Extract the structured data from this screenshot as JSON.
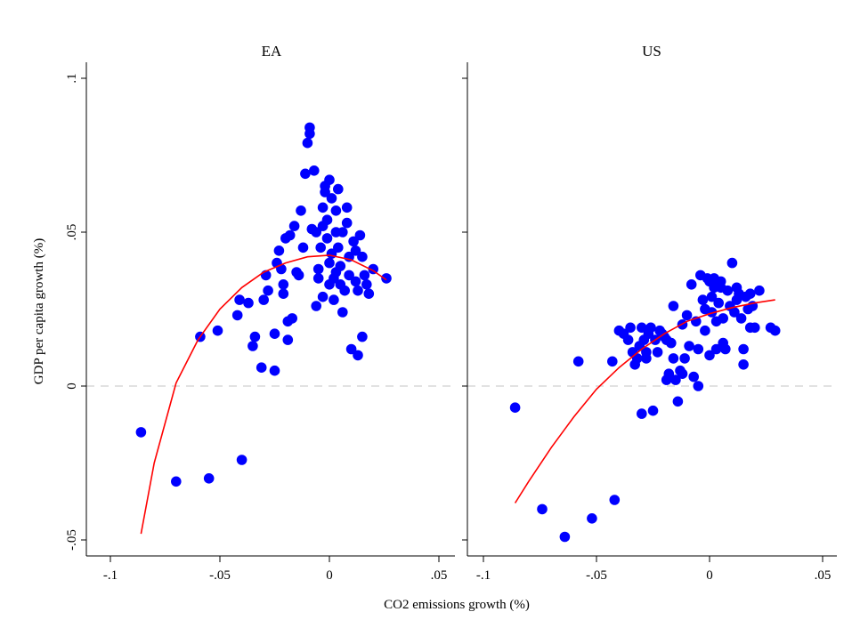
{
  "chart_data": {
    "type": "scatter",
    "xlabel": "CO2 emissions growth (%)",
    "ylabel": "GDP per capita growth (%)",
    "ylim": [
      -0.05,
      0.1
    ],
    "yticks": [
      -0.05,
      0,
      0.05,
      0.1
    ],
    "ytick_labels": [
      "-.05",
      "0",
      ".05",
      ".1"
    ],
    "grid": false,
    "legend": "none",
    "reference_line": {
      "y": 0,
      "style": "dashed",
      "color": "#d9d9d9"
    },
    "colors": {
      "points": "#0000ff",
      "fit": "#ff0000",
      "frame": "#000000",
      "background": "#ffffff"
    },
    "panels": [
      {
        "title": "EA",
        "xlim": [
          -0.1,
          0.05
        ],
        "xticks": [
          -0.1,
          -0.05,
          0,
          0.05
        ],
        "xtick_labels": [
          "-.1",
          "-.05",
          "0",
          ".05"
        ],
        "series": [
          {
            "type": "scatter",
            "points": [
              [
                -0.086,
                -0.015
              ],
              [
                -0.07,
                -0.031
              ],
              [
                -0.055,
                -0.03
              ],
              [
                -0.04,
                -0.024
              ],
              [
                -0.059,
                0.016
              ],
              [
                -0.051,
                0.018
              ],
              [
                -0.042,
                0.023
              ],
              [
                -0.041,
                0.028
              ],
              [
                -0.037,
                0.027
              ],
              [
                -0.035,
                0.013
              ],
              [
                -0.034,
                0.016
              ],
              [
                -0.031,
                0.006
              ],
              [
                -0.03,
                0.028
              ],
              [
                -0.029,
                0.036
              ],
              [
                -0.028,
                0.031
              ],
              [
                -0.025,
                0.005
              ],
              [
                -0.025,
                0.017
              ],
              [
                -0.024,
                0.04
              ],
              [
                -0.023,
                0.044
              ],
              [
                -0.022,
                0.038
              ],
              [
                -0.021,
                0.03
              ],
              [
                -0.021,
                0.033
              ],
              [
                -0.02,
                0.048
              ],
              [
                -0.019,
                0.021
              ],
              [
                -0.019,
                0.015
              ],
              [
                -0.018,
                0.049
              ],
              [
                -0.017,
                0.022
              ],
              [
                -0.016,
                0.052
              ],
              [
                -0.015,
                0.037
              ],
              [
                -0.014,
                0.036
              ],
              [
                -0.013,
                0.057
              ],
              [
                -0.012,
                0.045
              ],
              [
                -0.011,
                0.069
              ],
              [
                -0.01,
                0.079
              ],
              [
                -0.009,
                0.082
              ],
              [
                -0.009,
                0.084
              ],
              [
                -0.008,
                0.051
              ],
              [
                -0.007,
                0.07
              ],
              [
                -0.006,
                0.05
              ],
              [
                -0.005,
                0.035
              ],
              [
                -0.005,
                0.038
              ],
              [
                -0.004,
                0.045
              ],
              [
                -0.003,
                0.052
              ],
              [
                -0.003,
                0.058
              ],
              [
                -0.002,
                0.063
              ],
              [
                -0.002,
                0.065
              ],
              [
                -0.001,
                0.054
              ],
              [
                -0.001,
                0.048
              ],
              [
                0.0,
                0.04
              ],
              [
                0.0,
                0.067
              ],
              [
                0.001,
                0.061
              ],
              [
                0.001,
                0.043
              ],
              [
                0.002,
                0.035
              ],
              [
                0.002,
                0.028
              ],
              [
                0.003,
                0.05
              ],
              [
                0.003,
                0.057
              ],
              [
                0.004,
                0.064
              ],
              [
                0.004,
                0.045
              ],
              [
                0.005,
                0.039
              ],
              [
                0.005,
                0.033
              ],
              [
                0.006,
                0.05
              ],
              [
                0.006,
                0.024
              ],
              [
                0.007,
                0.031
              ],
              [
                0.008,
                0.058
              ],
              [
                0.008,
                0.053
              ],
              [
                0.009,
                0.042
              ],
              [
                0.009,
                0.036
              ],
              [
                0.01,
                0.012
              ],
              [
                0.011,
                0.047
              ],
              [
                0.012,
                0.044
              ],
              [
                0.012,
                0.034
              ],
              [
                0.013,
                0.01
              ],
              [
                0.013,
                0.031
              ],
              [
                0.014,
                0.049
              ],
              [
                0.015,
                0.042
              ],
              [
                0.015,
                0.016
              ],
              [
                0.016,
                0.036
              ],
              [
                0.017,
                0.033
              ],
              [
                0.018,
                0.03
              ],
              [
                0.02,
                0.038
              ],
              [
                0.026,
                0.035
              ],
              [
                -0.006,
                0.026
              ],
              [
                -0.003,
                0.029
              ],
              [
                0.0,
                0.033
              ],
              [
                0.003,
                0.037
              ]
            ]
          },
          {
            "type": "line",
            "name": "quadratic fit",
            "points": [
              [
                -0.086,
                -0.048
              ],
              [
                -0.08,
                -0.025
              ],
              [
                -0.07,
                0.001
              ],
              [
                -0.06,
                0.015
              ],
              [
                -0.05,
                0.025
              ],
              [
                -0.04,
                0.032
              ],
              [
                -0.03,
                0.037
              ],
              [
                -0.02,
                0.04
              ],
              [
                -0.01,
                0.042
              ],
              [
                0.0,
                0.0425
              ],
              [
                0.01,
                0.041
              ],
              [
                0.02,
                0.0375
              ],
              [
                0.026,
                0.0345
              ]
            ]
          }
        ]
      },
      {
        "title": "US",
        "xlim": [
          -0.1,
          0.05
        ],
        "xticks": [
          -0.1,
          -0.05,
          0,
          0.05
        ],
        "xtick_labels": [
          "-.1",
          "-.05",
          "0",
          ".05"
        ],
        "series": [
          {
            "type": "scatter",
            "points": [
              [
                -0.086,
                -0.007
              ],
              [
                -0.074,
                -0.04
              ],
              [
                -0.064,
                -0.049
              ],
              [
                -0.052,
                -0.043
              ],
              [
                -0.042,
                -0.037
              ],
              [
                -0.058,
                0.008
              ],
              [
                -0.043,
                0.008
              ],
              [
                -0.04,
                0.018
              ],
              [
                -0.038,
                0.017
              ],
              [
                -0.036,
                0.015
              ],
              [
                -0.035,
                0.019
              ],
              [
                -0.034,
                0.011
              ],
              [
                -0.033,
                0.007
              ],
              [
                -0.032,
                0.009
              ],
              [
                -0.031,
                0.013
              ],
              [
                -0.03,
                0.019
              ],
              [
                -0.03,
                -0.009
              ],
              [
                -0.029,
                0.015
              ],
              [
                -0.028,
                0.011
              ],
              [
                -0.028,
                0.009
              ],
              [
                -0.027,
                0.017
              ],
              [
                -0.026,
                0.019
              ],
              [
                -0.025,
                -0.008
              ],
              [
                -0.024,
                0.015
              ],
              [
                -0.023,
                0.011
              ],
              [
                -0.022,
                0.018
              ],
              [
                -0.021,
                0.017
              ],
              [
                -0.02,
                0.016
              ],
              [
                -0.019,
                0.015
              ],
              [
                -0.019,
                0.002
              ],
              [
                -0.018,
                0.004
              ],
              [
                -0.017,
                0.014
              ],
              [
                -0.016,
                0.009
              ],
              [
                -0.016,
                0.026
              ],
              [
                -0.015,
                0.002
              ],
              [
                -0.014,
                -0.005
              ],
              [
                -0.013,
                0.005
              ],
              [
                -0.012,
                0.02
              ],
              [
                -0.012,
                0.004
              ],
              [
                -0.011,
                0.009
              ],
              [
                -0.01,
                0.023
              ],
              [
                -0.009,
                0.013
              ],
              [
                -0.008,
                0.033
              ],
              [
                -0.007,
                0.003
              ],
              [
                -0.006,
                0.021
              ],
              [
                -0.005,
                0.012
              ],
              [
                -0.005,
                0.0
              ],
              [
                -0.004,
                0.036
              ],
              [
                -0.003,
                0.028
              ],
              [
                -0.002,
                0.025
              ],
              [
                -0.002,
                0.018
              ],
              [
                -0.001,
                0.035
              ],
              [
                0.0,
                0.034
              ],
              [
                0.0,
                0.01
              ],
              [
                0.001,
                0.024
              ],
              [
                0.001,
                0.029
              ],
              [
                0.002,
                0.032
              ],
              [
                0.002,
                0.035
              ],
              [
                0.003,
                0.021
              ],
              [
                0.003,
                0.012
              ],
              [
                0.004,
                0.027
              ],
              [
                0.005,
                0.034
              ],
              [
                0.005,
                0.032
              ],
              [
                0.006,
                0.022
              ],
              [
                0.006,
                0.014
              ],
              [
                0.007,
                0.012
              ],
              [
                0.008,
                0.031
              ],
              [
                0.009,
                0.026
              ],
              [
                0.01,
                0.04
              ],
              [
                0.011,
                0.024
              ],
              [
                0.012,
                0.028
              ],
              [
                0.013,
                0.03
              ],
              [
                0.014,
                0.022
              ],
              [
                0.015,
                0.012
              ],
              [
                0.015,
                0.007
              ],
              [
                0.016,
                0.029
              ],
              [
                0.017,
                0.025
              ],
              [
                0.018,
                0.03
              ],
              [
                0.019,
                0.026
              ],
              [
                0.02,
                0.019
              ],
              [
                0.022,
                0.031
              ],
              [
                0.027,
                0.019
              ],
              [
                0.029,
                0.018
              ],
              [
                0.018,
                0.019
              ],
              [
                0.012,
                0.032
              ]
            ]
          },
          {
            "type": "line",
            "name": "quadratic fit",
            "points": [
              [
                -0.086,
                -0.038
              ],
              [
                -0.08,
                -0.031
              ],
              [
                -0.07,
                -0.02
              ],
              [
                -0.06,
                -0.01
              ],
              [
                -0.05,
                -0.001
              ],
              [
                -0.04,
                0.006
              ],
              [
                -0.03,
                0.012
              ],
              [
                -0.02,
                0.017
              ],
              [
                -0.01,
                0.021
              ],
              [
                0.0,
                0.0235
              ],
              [
                0.01,
                0.0255
              ],
              [
                0.02,
                0.027
              ],
              [
                0.029,
                0.028
              ]
            ]
          }
        ]
      }
    ]
  }
}
